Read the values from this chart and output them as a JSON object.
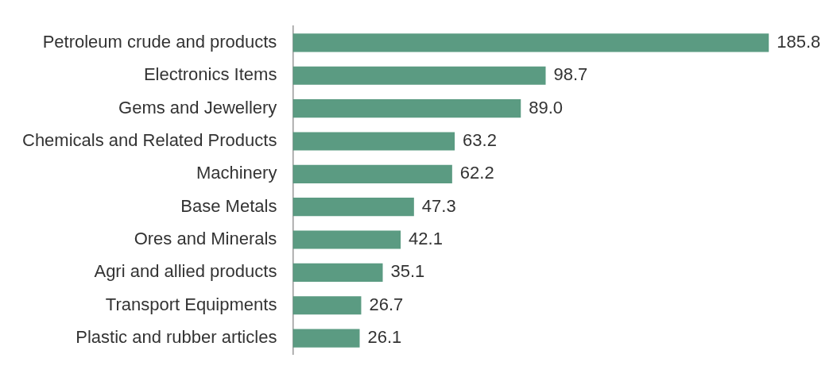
{
  "chart_data": {
    "type": "bar",
    "orientation": "horizontal",
    "categories": [
      "Petroleum crude and products",
      "Electronics Items",
      "Gems and Jewellery",
      "Chemicals and Related Products",
      "Machinery",
      "Base Metals",
      "Ores and Minerals",
      "Agri and allied products",
      "Transport Equipments",
      "Plastic and rubber articles"
    ],
    "values": [
      185.8,
      98.7,
      89.0,
      63.2,
      62.2,
      47.3,
      42.1,
      35.1,
      26.7,
      26.1
    ],
    "value_labels": [
      "185.8",
      "98.7",
      "89.0",
      "63.2",
      "62.2",
      "47.3",
      "42.1",
      "35.1",
      "26.7",
      "26.1"
    ],
    "color": "#5b9b82",
    "data_labels": true,
    "tick_labels": "y"
  }
}
